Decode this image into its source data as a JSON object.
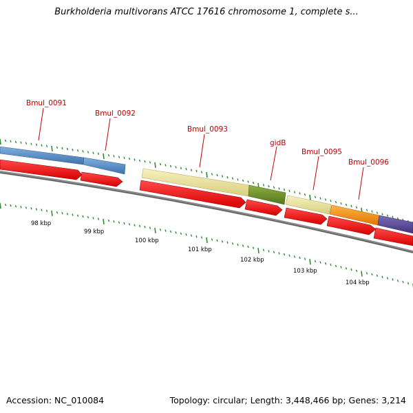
{
  "title": "Burkholderia multivorans ATCC 17616 chromosome 1, complete s...",
  "footer": {
    "accession": "Accession: NC_010084",
    "summary": "Topology: circular; Length: 3,448,466 bp; Genes: 3,214"
  },
  "gene_labels": [
    "Bmul_0091",
    "Bmul_0092",
    "Bmul_0093",
    "gidB",
    "Bmul_0095",
    "Bmul_0096"
  ],
  "kbp_labels": [
    "98 kbp",
    "99 kbp",
    "100 kbp",
    "101 kbp",
    "102 kbp",
    "103 kbp",
    "104 kbp"
  ],
  "colors": {
    "label": "#c00000",
    "tick": "#2f8a2f",
    "cds": "#ee1111",
    "blue": "#4a84c0",
    "yellow": "#ece59a",
    "green": "#6e8f2a",
    "orange": "#f08a10",
    "purple": "#5a4a98",
    "backbone": "#777777"
  }
}
